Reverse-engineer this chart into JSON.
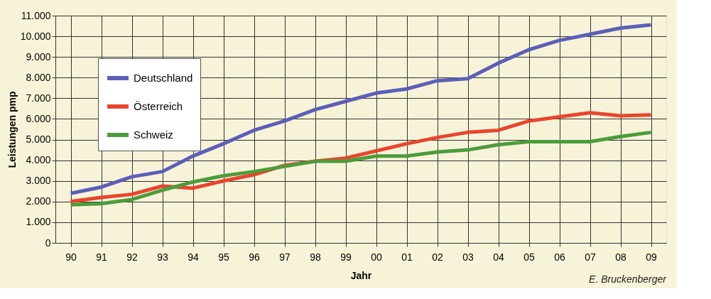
{
  "chart_data": {
    "type": "line",
    "xlabel": "Jahr",
    "ylabel": "Leistungen pmp",
    "categories": [
      "90",
      "91",
      "92",
      "93",
      "94",
      "95",
      "96",
      "97",
      "98",
      "99",
      "00",
      "01",
      "02",
      "03",
      "04",
      "05",
      "06",
      "07",
      "08",
      "09"
    ],
    "series": [
      {
        "name": "Deutschland",
        "color": "#5b5fb8",
        "values": [
          2400,
          2700,
          3200,
          3450,
          4200,
          4800,
          5450,
          5900,
          6450,
          6850,
          7250,
          7450,
          7850,
          7950,
          8700,
          9350,
          9800,
          10100,
          10400,
          10550
        ]
      },
      {
        "name": "Österreich",
        "color": "#e8452e",
        "values": [
          2000,
          2200,
          2350,
          2750,
          2650,
          3000,
          3300,
          3750,
          3950,
          4100,
          4450,
          4800,
          5100,
          5350,
          5450,
          5900,
          6100,
          6300,
          6150,
          6200
        ]
      },
      {
        "name": "Schweiz",
        "color": "#4c9c3c",
        "values": [
          1850,
          1900,
          2100,
          2550,
          2950,
          3250,
          3450,
          3700,
          3950,
          3950,
          4200,
          4200,
          4400,
          4500,
          4750,
          4900,
          4900,
          4900,
          5150,
          5350
        ]
      }
    ],
    "ylim": [
      0,
      11000
    ],
    "yticks": [
      0,
      {
        "value": 1000,
        "label": "1.000"
      },
      {
        "value": 2000,
        "label": "2.000"
      },
      {
        "value": 3000,
        "label": "3.000"
      },
      {
        "value": 4000,
        "label": "4.000"
      },
      {
        "value": 5000,
        "label": "5.000"
      },
      {
        "value": 6000,
        "label": "6.000"
      },
      {
        "value": 7000,
        "label": "7.000"
      },
      {
        "value": 8000,
        "label": "8.000"
      },
      {
        "value": 9000,
        "label": "9.000"
      },
      {
        "value": 10000,
        "label": "10.000"
      },
      {
        "value": 11000,
        "label": "11.000"
      }
    ],
    "grid": true,
    "legend": "top left",
    "marker": "none",
    "line_style": "solid",
    "annotations": [
      "E. Bruckenberger"
    ]
  }
}
